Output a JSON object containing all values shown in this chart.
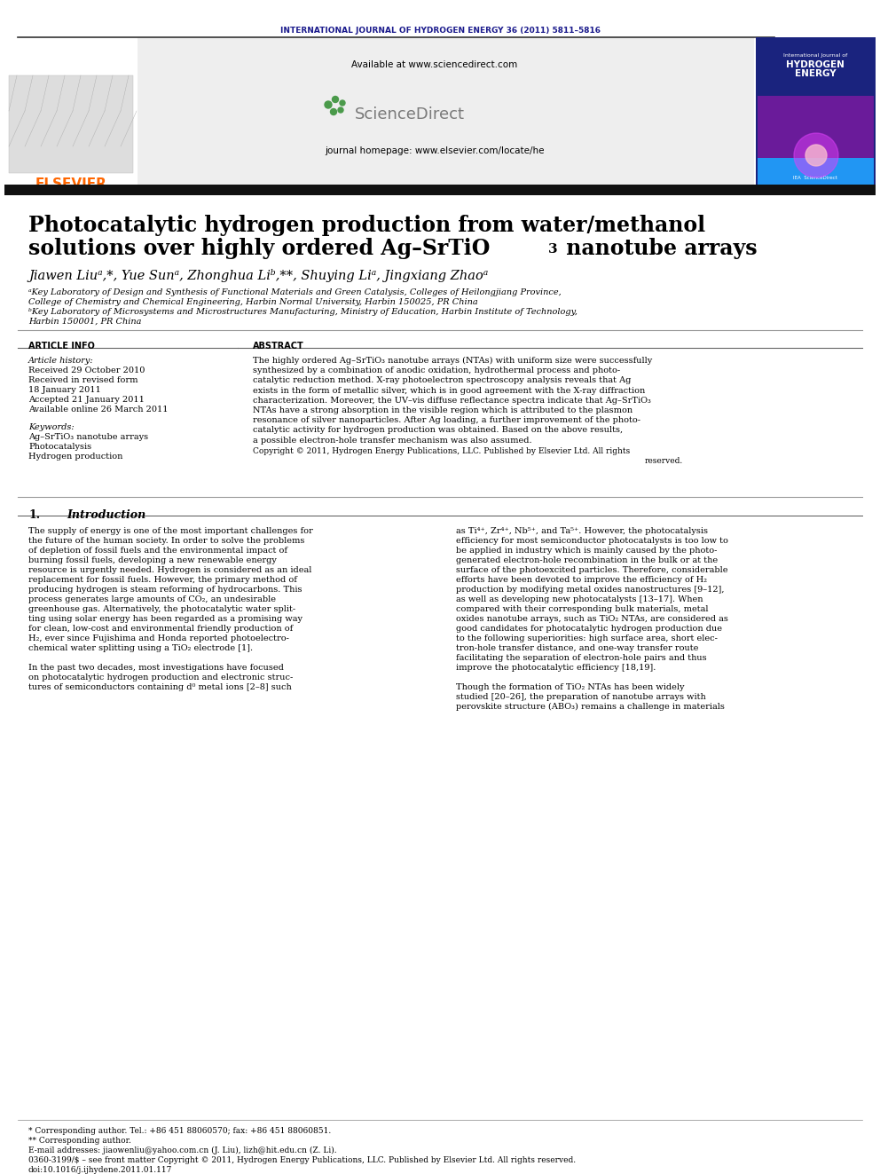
{
  "journal_header": "INTERNATIONAL JOURNAL OF HYDROGEN ENERGY 36 (2011) 5811–5816",
  "journal_header_color": "#1a1a8c",
  "available_text": "Available at www.sciencedirect.com",
  "journal_homepage": "journal homepage: www.elsevier.com/locate/he",
  "elsevier_color": "#ff6600",
  "title_line1": "Photocatalytic hydrogen production from water/methanol",
  "title_line2_pre": "solutions over highly ordered Ag–SrTiO",
  "title_sub": "3",
  "title_line2_post": " nanotube arrays",
  "authors_line": "Jiawen Liuᵃ,*, Yue Sunᵃ, Zhonghua Liᵇ,**, Shuying Liᵃ, Jingxiang Zhaoᵃ",
  "affil_a1": "ᵃKey Laboratory of Design and Synthesis of Functional Materials and Green Catalysis, Colleges of Heilongjiang Province,",
  "affil_a2": "College of Chemistry and Chemical Engineering, Harbin Normal University, Harbin 150025, PR China",
  "affil_b1": "ᵇKey Laboratory of Microsystems and Microstructures Manufacturing, Ministry of Education, Harbin Institute of Technology,",
  "affil_b2": "Harbin 150001, PR China",
  "article_info_title": "ARTICLE INFO",
  "abstract_title": "ABSTRACT",
  "article_history": "Article history:",
  "received1": "Received 29 October 2010",
  "received2": "Received in revised form",
  "received2b": "18 January 2011",
  "accepted": "Accepted 21 January 2011",
  "available_online": "Available online 26 March 2011",
  "keywords_title": "Keywords:",
  "keyword1": "Ag–SrTiO₃ nanotube arrays",
  "keyword2": "Photocatalysis",
  "keyword3": "Hydrogen production",
  "abstract_lines": [
    "The highly ordered Ag–SrTiO₃ nanotube arrays (NTAs) with uniform size were successfully",
    "synthesized by a combination of anodic oxidation, hydrothermal process and photo-",
    "catalytic reduction method. X-ray photoelectron spectroscopy analysis reveals that Ag",
    "exists in the form of metallic silver, which is in good agreement with the X-ray diffraction",
    "characterization. Moreover, the UV–vis diffuse reflectance spectra indicate that Ag–SrTiO₃",
    "NTAs have a strong absorption in the visible region which is attributed to the plasmon",
    "resonance of silver nanoparticles. After Ag loading, a further improvement of the photo-",
    "catalytic activity for hydrogen production was obtained. Based on the above results,",
    "a possible electron-hole transfer mechanism was also assumed."
  ],
  "copyright_line1": "Copyright © 2011, Hydrogen Energy Publications, LLC. Published by Elsevier Ltd. All rights",
  "copyright_line2": "reserved.",
  "intro_num": "1.",
  "intro_title": "Introduction",
  "intro_left_lines": [
    "The supply of energy is one of the most important challenges for",
    "the future of the human society. In order to solve the problems",
    "of depletion of fossil fuels and the environmental impact of",
    "burning fossil fuels, developing a new renewable energy",
    "resource is urgently needed. Hydrogen is considered as an ideal",
    "replacement for fossil fuels. However, the primary method of",
    "producing hydrogen is steam reforming of hydrocarbons. This",
    "process generates large amounts of CO₂, an undesirable",
    "greenhouse gas. Alternatively, the photocatalytic water split-",
    "ting using solar energy has been regarded as a promising way",
    "for clean, low-cost and environmental friendly production of",
    "H₂, ever since Fujishima and Honda reported photoelectro-",
    "chemical water splitting using a TiO₂ electrode [1].",
    "",
    "In the past two decades, most investigations have focused",
    "on photocatalytic hydrogen production and electronic struc-",
    "tures of semiconductors containing d⁰ metal ions [2–8] such"
  ],
  "intro_right_lines": [
    "as Ti⁴⁺, Zr⁴⁺, Nb⁵⁺, and Ta⁵⁺. However, the photocatalysis",
    "efficiency for most semiconductor photocatalysts is too low to",
    "be applied in industry which is mainly caused by the photo-",
    "generated electron-hole recombination in the bulk or at the",
    "surface of the photoexcited particles. Therefore, considerable",
    "efforts have been devoted to improve the efficiency of H₂",
    "production by modifying metal oxides nanostructures [9–12],",
    "as well as developing new photocatalysts [13–17]. When",
    "compared with their corresponding bulk materials, metal",
    "oxides nanotube arrays, such as TiO₂ NTAs, are considered as",
    "good candidates for photocatalytic hydrogen production due",
    "to the following superiorities: high surface area, short elec-",
    "tron-hole transfer distance, and one-way transfer route",
    "facilitating the separation of electron-hole pairs and thus",
    "improve the photocatalytic efficiency [18,19].",
    "",
    "Though the formation of TiO₂ NTAs has been widely",
    "studied [20–26], the preparation of nanotube arrays with",
    "perovskite structure (ABO₃) remains a challenge in materials"
  ],
  "footnote1": "* Corresponding author. Tel.: +86 451 88060570; fax: +86 451 88060851.",
  "footnote2": "** Corresponding author.",
  "footnote3": "E-mail addresses: jiaowenliu@yahoo.com.cn (J. Liu), lizh@hit.edu.cn (Z. Li).",
  "footnote4": "0360-3199/$ – see front matter Copyright © 2011, Hydrogen Energy Publications, LLC. Published by Elsevier Ltd. All rights reserved.",
  "footnote5": "doi:10.1016/j.ijhydene.2011.01.117",
  "bg_color": "#ffffff"
}
